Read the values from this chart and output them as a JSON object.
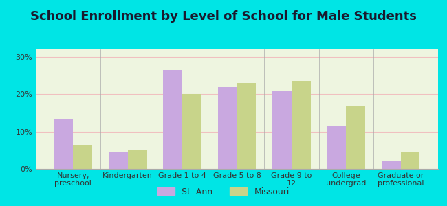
{
  "title": "School Enrollment by Level of School for Male Students",
  "categories": [
    "Nursery,\npreschool",
    "Kindergarten",
    "Grade 1 to 4",
    "Grade 5 to 8",
    "Grade 9 to\n12",
    "College\nundergrad",
    "Graduate or\nprofessional"
  ],
  "st_ann": [
    13.5,
    4.5,
    26.5,
    22.0,
    21.0,
    11.5,
    2.0
  ],
  "missouri": [
    6.5,
    5.0,
    20.0,
    23.0,
    23.5,
    17.0,
    4.5
  ],
  "color_st_ann": "#c9a8e0",
  "color_missouri": "#c8d48a",
  "background_outer": "#00e5e5",
  "background_plot": "#eef5e0",
  "ylim": [
    0,
    32
  ],
  "yticks": [
    0,
    10,
    20,
    30
  ],
  "ytick_labels": [
    "0%",
    "10%",
    "20%",
    "30%"
  ],
  "legend_st_ann": "St. Ann",
  "legend_missouri": "Missouri",
  "title_fontsize": 13,
  "tick_fontsize": 8,
  "legend_fontsize": 9
}
